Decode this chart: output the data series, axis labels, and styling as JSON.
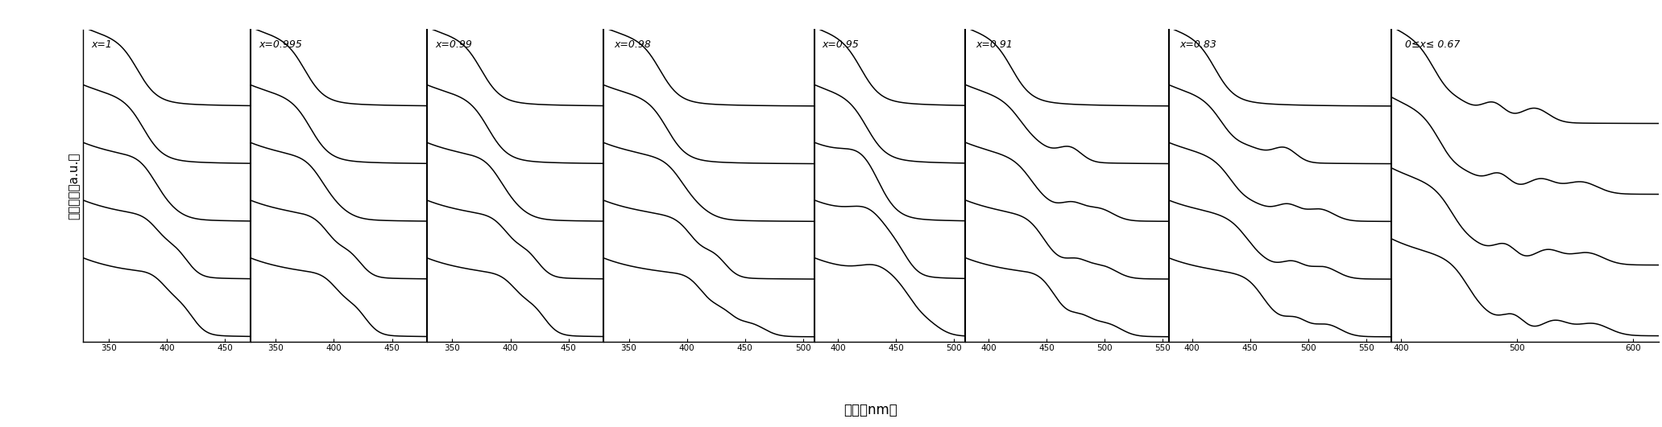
{
  "panels": [
    {
      "label": "x=1",
      "x_range": [
        328,
        472
      ],
      "x_ticks": [
        350,
        400,
        450
      ],
      "n_curves": 5,
      "curves": [
        {
          "onset": 340,
          "shoulder": null,
          "peaks": []
        },
        {
          "onset": 345,
          "shoulder": null,
          "peaks": []
        },
        {
          "onset": 352,
          "shoulder": 390,
          "peaks": []
        },
        {
          "onset": 358,
          "shoulder": 395,
          "peaks": [
            410
          ]
        },
        {
          "onset": 365,
          "shoulder": 400,
          "peaks": [
            415
          ]
        }
      ]
    },
    {
      "label": "x=0.995",
      "x_range": [
        328,
        480
      ],
      "x_ticks": [
        350,
        400,
        450
      ],
      "n_curves": 5,
      "curves": [
        {
          "onset": 340,
          "shoulder": null,
          "peaks": []
        },
        {
          "onset": 345,
          "shoulder": null,
          "peaks": []
        },
        {
          "onset": 352,
          "shoulder": 392,
          "peaks": []
        },
        {
          "onset": 360,
          "shoulder": 398,
          "peaks": [
            415
          ]
        },
        {
          "onset": 368,
          "shoulder": 405,
          "peaks": [
            420
          ]
        }
      ]
    },
    {
      "label": "x=0.99",
      "x_range": [
        328,
        480
      ],
      "x_ticks": [
        350,
        400,
        450
      ],
      "n_curves": 5,
      "curves": [
        {
          "onset": 340,
          "shoulder": null,
          "peaks": []
        },
        {
          "onset": 346,
          "shoulder": null,
          "peaks": []
        },
        {
          "onset": 354,
          "shoulder": 393,
          "peaks": []
        },
        {
          "onset": 362,
          "shoulder": 400,
          "peaks": [
            416
          ]
        },
        {
          "onset": 370,
          "shoulder": 408,
          "peaks": [
            422
          ]
        }
      ]
    },
    {
      "label": "x=0.98",
      "x_range": [
        328,
        510
      ],
      "x_ticks": [
        350,
        400,
        450,
        500
      ],
      "n_curves": 5,
      "curves": [
        {
          "onset": 342,
          "shoulder": null,
          "peaks": []
        },
        {
          "onset": 348,
          "shoulder": null,
          "peaks": []
        },
        {
          "onset": 358,
          "shoulder": 400,
          "peaks": []
        },
        {
          "onset": 368,
          "shoulder": 408,
          "peaks": [
            425
          ]
        },
        {
          "onset": 378,
          "shoulder": 415,
          "peaks": [
            432,
            455
          ]
        }
      ]
    },
    {
      "label": "x=0.95",
      "x_range": [
        380,
        510
      ],
      "x_ticks": [
        400,
        450,
        500
      ],
      "n_curves": 5,
      "curves": [
        {
          "onset": 385,
          "shoulder": null,
          "peaks": []
        },
        {
          "onset": 390,
          "shoulder": null,
          "peaks": []
        },
        {
          "onset": 398,
          "shoulder": 425,
          "peaks": []
        },
        {
          "onset": 408,
          "shoulder": 430,
          "peaks": [
            452
          ]
        },
        {
          "onset": 418,
          "shoulder": 438,
          "peaks": [
            458,
            475
          ]
        }
      ]
    },
    {
      "label": "x=0.91",
      "x_range": [
        380,
        555
      ],
      "x_ticks": [
        400,
        450,
        500,
        550
      ],
      "n_curves": 5,
      "curves": [
        {
          "onset": 385,
          "shoulder": null,
          "peaks": []
        },
        {
          "onset": 392,
          "shoulder": 440,
          "peaks": [
            470
          ]
        },
        {
          "onset": 400,
          "shoulder": 445,
          "peaks": [
            472,
            495
          ]
        },
        {
          "onset": 410,
          "shoulder": 450,
          "peaks": [
            476,
            498
          ]
        },
        {
          "onset": 420,
          "shoulder": 456,
          "peaks": [
            480,
            502
          ]
        }
      ]
    },
    {
      "label": "x=0.83",
      "x_range": [
        380,
        572
      ],
      "x_ticks": [
        400,
        450,
        500,
        550
      ],
      "n_curves": 5,
      "curves": [
        {
          "onset": 385,
          "shoulder": null,
          "peaks": []
        },
        {
          "onset": 392,
          "shoulder": 450,
          "peaks": [
            480
          ]
        },
        {
          "onset": 400,
          "shoulder": 455,
          "peaks": [
            483,
            510
          ]
        },
        {
          "onset": 412,
          "shoulder": 460,
          "peaks": [
            487,
            513
          ]
        },
        {
          "onset": 424,
          "shoulder": 465,
          "peaks": [
            490,
            516
          ]
        }
      ]
    },
    {
      "label": "0≤x≤ 0.67",
      "x_range": [
        392,
        622
      ],
      "x_ticks": [
        400,
        500,
        600
      ],
      "n_curves": 4,
      "curves": [
        {
          "onset": 395,
          "shoulder": 450,
          "peaks": [
            480,
            515
          ]
        },
        {
          "onset": 400,
          "shoulder": 456,
          "peaks": [
            485,
            520,
            555
          ]
        },
        {
          "onset": 410,
          "shoulder": 462,
          "peaks": [
            490,
            526,
            560
          ]
        },
        {
          "onset": 422,
          "shoulder": 470,
          "peaks": [
            497,
            532,
            565
          ]
        }
      ]
    }
  ],
  "ylabel": "吸收强度（a.u.）",
  "xlabel": "波长（nm）",
  "bg_color": "#ffffff",
  "line_color": "#000000",
  "line_width": 1.1,
  "figsize": [
    20.63,
    5.31
  ],
  "dpi": 100
}
